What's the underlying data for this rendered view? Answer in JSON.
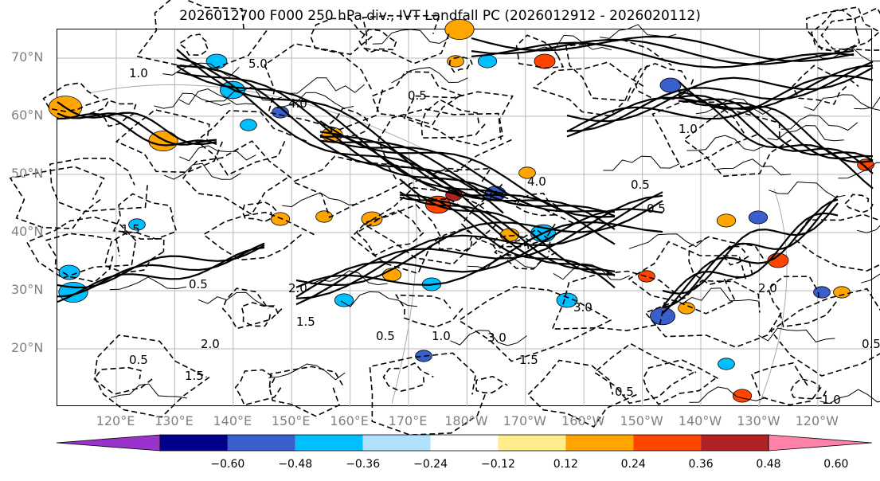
{
  "title": "2026012700 F000 250 hPa div., IVT Landfall PC (2026012912 - 2026020112)",
  "lat_labels": [
    "70°N",
    "60°N",
    "50°N",
    "40°N",
    "30°N",
    "20°N"
  ],
  "lon_labels": [
    "120°E",
    "130°E",
    "140°E",
    "150°E",
    "160°E",
    "170°E",
    "180°W",
    "170°W",
    "160°W",
    "150°W",
    "140°W",
    "130°W",
    "120°W"
  ],
  "colorbar": {
    "colors": [
      "#9a33cc",
      "#00008b",
      "#3a5fcd",
      "#00bfff",
      "#b0e2ff",
      "#ffffff",
      "#ffec8b",
      "#ffa500",
      "#ff4500",
      "#b22222",
      "#ff83a8"
    ],
    "labels": [
      "−0.60",
      "−0.48",
      "−0.36",
      "−0.24",
      "−0.12",
      "0.12",
      "0.24",
      "0.36",
      "0.48",
      "0.60"
    ]
  },
  "contour_labels": [
    "5.0",
    "4.0",
    "0.5",
    "1.0",
    "1.5",
    "2.0",
    "3.0",
    "4.0",
    "0.5",
    "1.0",
    "0.5",
    "1.5",
    "3.0",
    "0.5",
    "2.0",
    "0.5",
    "1.0",
    "1.5",
    "0.5",
    "2.0",
    "1.0",
    "0.5",
    "1.5",
    "0.5"
  ]
}
